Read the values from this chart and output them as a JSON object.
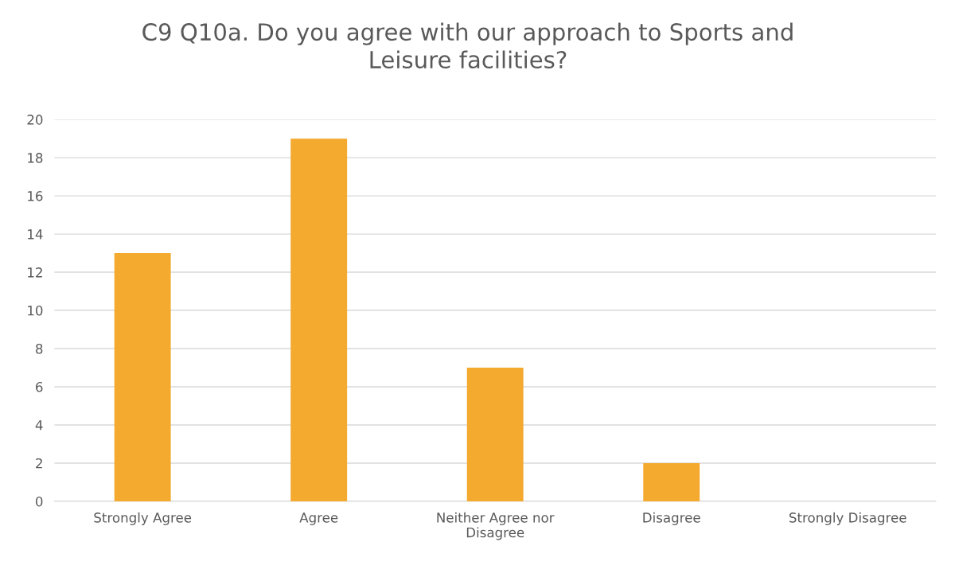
{
  "chart_data": {
    "type": "bar",
    "title": "C9 Q10a. Do you agree with our approach to Sports and Leisure facilities?",
    "categories": [
      "Strongly Agree",
      "Agree",
      "Neither Agree nor Disagree",
      "Disagree",
      "Strongly Disagree"
    ],
    "values": [
      13,
      19,
      7,
      2,
      0
    ],
    "color": "#f4a92f",
    "ylim": [
      0,
      20
    ],
    "yticks": [
      0,
      2,
      4,
      6,
      8,
      10,
      12,
      14,
      16,
      18,
      20
    ],
    "grid": "y",
    "legend": false
  }
}
